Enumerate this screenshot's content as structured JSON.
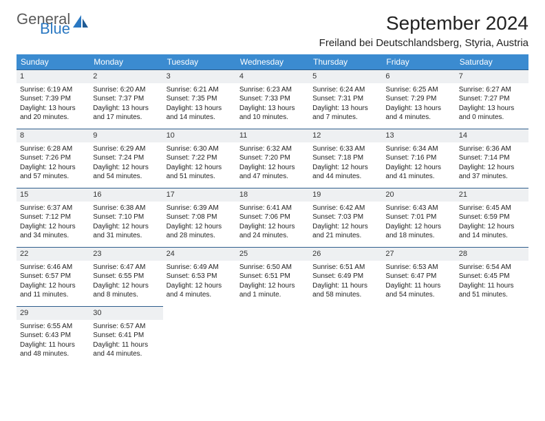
{
  "brand": {
    "word1": "General",
    "word2": "Blue",
    "color_gray": "#5a5a5a",
    "color_blue": "#2a78c2"
  },
  "title": "September 2024",
  "location": "Freiland bei Deutschlandsberg, Styria, Austria",
  "header_bg": "#3b8bd0",
  "daynum_bg": "#eef0f2",
  "border_color": "#2a5b8a",
  "title_fontsize": 28,
  "location_fontsize": 15,
  "dow_fontsize": 12,
  "cell_fontsize": 10,
  "dow": [
    "Sunday",
    "Monday",
    "Tuesday",
    "Wednesday",
    "Thursday",
    "Friday",
    "Saturday"
  ],
  "weeks": [
    [
      {
        "n": "1",
        "sr": "Sunrise: 6:19 AM",
        "ss": "Sunset: 7:39 PM",
        "dl": "Daylight: 13 hours and 20 minutes."
      },
      {
        "n": "2",
        "sr": "Sunrise: 6:20 AM",
        "ss": "Sunset: 7:37 PM",
        "dl": "Daylight: 13 hours and 17 minutes."
      },
      {
        "n": "3",
        "sr": "Sunrise: 6:21 AM",
        "ss": "Sunset: 7:35 PM",
        "dl": "Daylight: 13 hours and 14 minutes."
      },
      {
        "n": "4",
        "sr": "Sunrise: 6:23 AM",
        "ss": "Sunset: 7:33 PM",
        "dl": "Daylight: 13 hours and 10 minutes."
      },
      {
        "n": "5",
        "sr": "Sunrise: 6:24 AM",
        "ss": "Sunset: 7:31 PM",
        "dl": "Daylight: 13 hours and 7 minutes."
      },
      {
        "n": "6",
        "sr": "Sunrise: 6:25 AM",
        "ss": "Sunset: 7:29 PM",
        "dl": "Daylight: 13 hours and 4 minutes."
      },
      {
        "n": "7",
        "sr": "Sunrise: 6:27 AM",
        "ss": "Sunset: 7:27 PM",
        "dl": "Daylight: 13 hours and 0 minutes."
      }
    ],
    [
      {
        "n": "8",
        "sr": "Sunrise: 6:28 AM",
        "ss": "Sunset: 7:26 PM",
        "dl": "Daylight: 12 hours and 57 minutes."
      },
      {
        "n": "9",
        "sr": "Sunrise: 6:29 AM",
        "ss": "Sunset: 7:24 PM",
        "dl": "Daylight: 12 hours and 54 minutes."
      },
      {
        "n": "10",
        "sr": "Sunrise: 6:30 AM",
        "ss": "Sunset: 7:22 PM",
        "dl": "Daylight: 12 hours and 51 minutes."
      },
      {
        "n": "11",
        "sr": "Sunrise: 6:32 AM",
        "ss": "Sunset: 7:20 PM",
        "dl": "Daylight: 12 hours and 47 minutes."
      },
      {
        "n": "12",
        "sr": "Sunrise: 6:33 AM",
        "ss": "Sunset: 7:18 PM",
        "dl": "Daylight: 12 hours and 44 minutes."
      },
      {
        "n": "13",
        "sr": "Sunrise: 6:34 AM",
        "ss": "Sunset: 7:16 PM",
        "dl": "Daylight: 12 hours and 41 minutes."
      },
      {
        "n": "14",
        "sr": "Sunrise: 6:36 AM",
        "ss": "Sunset: 7:14 PM",
        "dl": "Daylight: 12 hours and 37 minutes."
      }
    ],
    [
      {
        "n": "15",
        "sr": "Sunrise: 6:37 AM",
        "ss": "Sunset: 7:12 PM",
        "dl": "Daylight: 12 hours and 34 minutes."
      },
      {
        "n": "16",
        "sr": "Sunrise: 6:38 AM",
        "ss": "Sunset: 7:10 PM",
        "dl": "Daylight: 12 hours and 31 minutes."
      },
      {
        "n": "17",
        "sr": "Sunrise: 6:39 AM",
        "ss": "Sunset: 7:08 PM",
        "dl": "Daylight: 12 hours and 28 minutes."
      },
      {
        "n": "18",
        "sr": "Sunrise: 6:41 AM",
        "ss": "Sunset: 7:06 PM",
        "dl": "Daylight: 12 hours and 24 minutes."
      },
      {
        "n": "19",
        "sr": "Sunrise: 6:42 AM",
        "ss": "Sunset: 7:03 PM",
        "dl": "Daylight: 12 hours and 21 minutes."
      },
      {
        "n": "20",
        "sr": "Sunrise: 6:43 AM",
        "ss": "Sunset: 7:01 PM",
        "dl": "Daylight: 12 hours and 18 minutes."
      },
      {
        "n": "21",
        "sr": "Sunrise: 6:45 AM",
        "ss": "Sunset: 6:59 PM",
        "dl": "Daylight: 12 hours and 14 minutes."
      }
    ],
    [
      {
        "n": "22",
        "sr": "Sunrise: 6:46 AM",
        "ss": "Sunset: 6:57 PM",
        "dl": "Daylight: 12 hours and 11 minutes."
      },
      {
        "n": "23",
        "sr": "Sunrise: 6:47 AM",
        "ss": "Sunset: 6:55 PM",
        "dl": "Daylight: 12 hours and 8 minutes."
      },
      {
        "n": "24",
        "sr": "Sunrise: 6:49 AM",
        "ss": "Sunset: 6:53 PM",
        "dl": "Daylight: 12 hours and 4 minutes."
      },
      {
        "n": "25",
        "sr": "Sunrise: 6:50 AM",
        "ss": "Sunset: 6:51 PM",
        "dl": "Daylight: 12 hours and 1 minute."
      },
      {
        "n": "26",
        "sr": "Sunrise: 6:51 AM",
        "ss": "Sunset: 6:49 PM",
        "dl": "Daylight: 11 hours and 58 minutes."
      },
      {
        "n": "27",
        "sr": "Sunrise: 6:53 AM",
        "ss": "Sunset: 6:47 PM",
        "dl": "Daylight: 11 hours and 54 minutes."
      },
      {
        "n": "28",
        "sr": "Sunrise: 6:54 AM",
        "ss": "Sunset: 6:45 PM",
        "dl": "Daylight: 11 hours and 51 minutes."
      }
    ],
    [
      {
        "n": "29",
        "sr": "Sunrise: 6:55 AM",
        "ss": "Sunset: 6:43 PM",
        "dl": "Daylight: 11 hours and 48 minutes."
      },
      {
        "n": "30",
        "sr": "Sunrise: 6:57 AM",
        "ss": "Sunset: 6:41 PM",
        "dl": "Daylight: 11 hours and 44 minutes."
      },
      null,
      null,
      null,
      null,
      null
    ]
  ]
}
